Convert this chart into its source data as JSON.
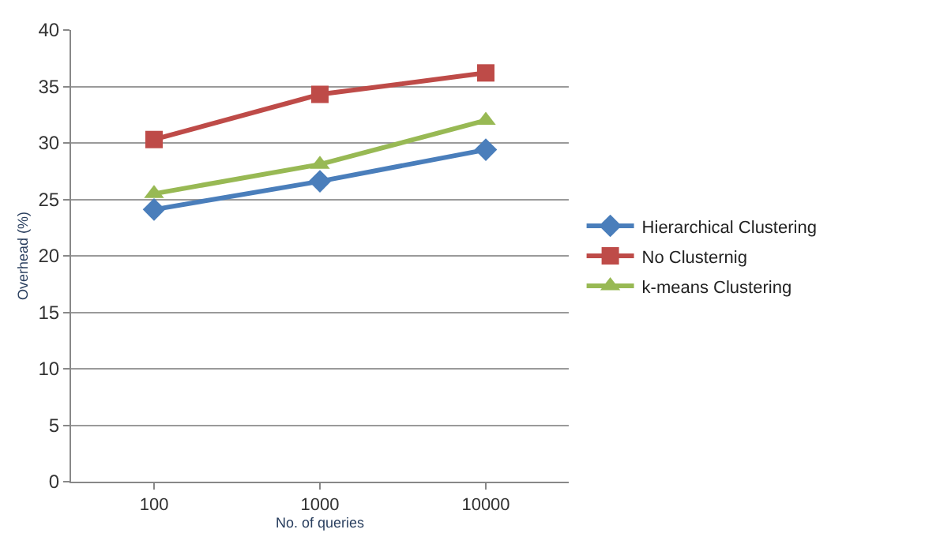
{
  "chart_data": {
    "type": "line",
    "xlabel": "No. of queries",
    "ylabel": "Overhead (%)",
    "categories": [
      "100",
      "1000",
      "10000"
    ],
    "series": [
      {
        "name": "Hierarchical Clustering",
        "color": "#4a7ebb",
        "marker": "diamond",
        "values": [
          24.1,
          26.6,
          29.4
        ]
      },
      {
        "name": "No Clusternig",
        "color": "#be4b48",
        "marker": "square",
        "values": [
          30.3,
          34.3,
          36.2
        ]
      },
      {
        "name": "k-means Clustering",
        "color": "#98b954",
        "marker": "triangle",
        "values": [
          25.5,
          28.1,
          32.0
        ]
      }
    ],
    "ylim": [
      0,
      40
    ],
    "yticks": [
      0,
      5,
      10,
      15,
      20,
      25,
      30,
      35,
      40
    ],
    "grid": "y",
    "legend": "right",
    "line_style": "solid"
  }
}
